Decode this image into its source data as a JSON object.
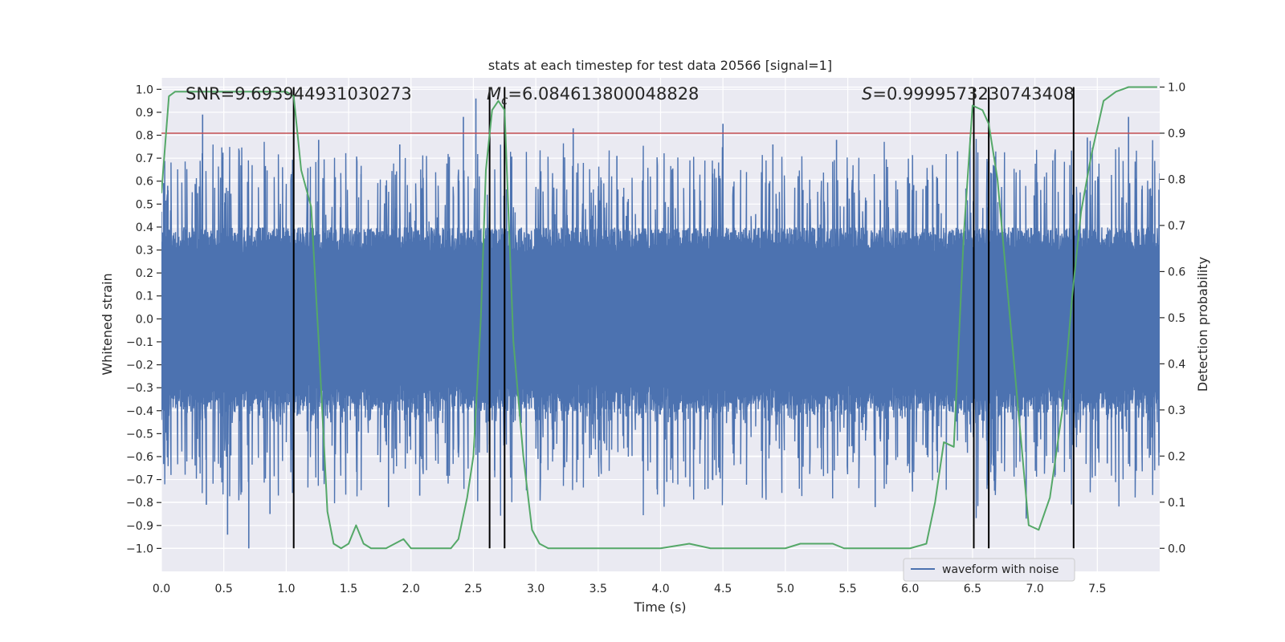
{
  "chart_data": {
    "type": "line",
    "title": "stats at each timestep for test data 20566 [signal=1]",
    "xlabel": "Time (s)",
    "ylabel_left": "Whitened strain",
    "ylabel_right": "Detection probability",
    "xlim": [
      0.0,
      8.0
    ],
    "ylim_left": [
      -1.1,
      1.05
    ],
    "ylim_right": [
      -0.05,
      1.02
    ],
    "x_ticks": [
      0.0,
      0.5,
      1.0,
      1.5,
      2.0,
      2.5,
      3.0,
      3.5,
      4.0,
      4.5,
      5.0,
      5.5,
      6.0,
      6.5,
      7.0,
      7.5
    ],
    "x_tick_labels": [
      "0.0",
      "0.5",
      "1.0",
      "1.5",
      "2.0",
      "2.5",
      "3.0",
      "3.5",
      "4.0",
      "4.5",
      "5.0",
      "5.5",
      "6.0",
      "6.5",
      "7.0",
      "7.5"
    ],
    "y_left_ticks": [
      1.0,
      0.9,
      0.8,
      0.7,
      0.6,
      0.5,
      0.4,
      0.3,
      0.2,
      0.1,
      0.0,
      -0.1,
      -0.2,
      -0.3,
      -0.4,
      -0.5,
      -0.6,
      -0.7,
      -0.8,
      -0.9,
      -1.0
    ],
    "y_left_tick_labels": [
      "1.0",
      "0.9",
      "0.8",
      "0.7",
      "0.6",
      "0.5",
      "0.4",
      "0.3",
      "0.2",
      "0.1",
      "0.0",
      "−0.1",
      "−0.2",
      "−0.3",
      "−0.4",
      "−0.5",
      "−0.6",
      "−0.7",
      "−0.8",
      "−0.9",
      "−1.0"
    ],
    "y_right_ticks": [
      1.0,
      0.9,
      0.8,
      0.7,
      0.6,
      0.5,
      0.4,
      0.3,
      0.2,
      0.1,
      0.0
    ],
    "y_right_tick_labels": [
      "1.0",
      "0.9",
      "0.8",
      "0.7",
      "0.6",
      "0.5",
      "0.4",
      "0.3",
      "0.2",
      "0.1",
      "0.0"
    ],
    "annotations": {
      "snr": "SNR=9.693944931030273",
      "mc_symbol": "M",
      "mc_sub": "c",
      "mc_value": "=6.084613800048828",
      "s_symbol": "S",
      "s_value": "=0.9999573230743408"
    },
    "threshold_right": 0.9,
    "vertical_lines_x": [
      1.06,
      2.63,
      2.75,
      6.51,
      6.63,
      7.31
    ],
    "vertical_lines_range_right": [
      0.0,
      1.0
    ],
    "waveform": {
      "name": "waveform with noise",
      "color": "#4c72b0",
      "n_samples": 2400,
      "base_amplitude": 0.38,
      "peaks": [
        {
          "x": 0.05,
          "y": 0.58
        },
        {
          "x": 0.33,
          "y": 0.89
        },
        {
          "x": 0.36,
          "y": -0.81
        },
        {
          "x": 0.53,
          "y": -0.94
        },
        {
          "x": 0.7,
          "y": -1.0
        },
        {
          "x": 0.87,
          "y": -0.85
        },
        {
          "x": 1.05,
          "y": 0.64
        },
        {
          "x": 1.26,
          "y": 0.78
        },
        {
          "x": 1.6,
          "y": 0.63
        },
        {
          "x": 1.82,
          "y": -0.82
        },
        {
          "x": 1.91,
          "y": 0.76
        },
        {
          "x": 2.07,
          "y": -0.77
        },
        {
          "x": 2.42,
          "y": 0.88
        },
        {
          "x": 2.52,
          "y": 0.96
        },
        {
          "x": 2.67,
          "y": -0.66
        },
        {
          "x": 3.3,
          "y": 0.83
        },
        {
          "x": 3.65,
          "y": 0.71
        },
        {
          "x": 4.05,
          "y": -0.71
        },
        {
          "x": 4.2,
          "y": -0.69
        },
        {
          "x": 4.38,
          "y": -0.74
        },
        {
          "x": 4.5,
          "y": 0.85
        },
        {
          "x": 4.9,
          "y": 0.76
        },
        {
          "x": 5.41,
          "y": 0.78
        },
        {
          "x": 5.72,
          "y": -0.82
        },
        {
          "x": 6.38,
          "y": 0.73
        },
        {
          "x": 6.48,
          "y": 0.79
        },
        {
          "x": 6.93,
          "y": -0.87
        },
        {
          "x": 7.42,
          "y": 0.79
        },
        {
          "x": 7.58,
          "y": -0.63
        },
        {
          "x": 7.75,
          "y": 0.88
        }
      ]
    },
    "probability": {
      "name": "detection probability",
      "color": "#55a868",
      "x": [
        0.0,
        0.06,
        0.11,
        0.2,
        0.3,
        0.4,
        0.5,
        0.6,
        0.7,
        0.8,
        0.9,
        1.0,
        1.06,
        1.12,
        1.2,
        1.26,
        1.3,
        1.33,
        1.38,
        1.44,
        1.5,
        1.56,
        1.62,
        1.68,
        1.74,
        1.8,
        1.87,
        1.94,
        2.0,
        2.1,
        2.2,
        2.32,
        2.38,
        2.45,
        2.5,
        2.56,
        2.6,
        2.65,
        2.7,
        2.75,
        2.82,
        2.9,
        2.97,
        3.03,
        3.1,
        3.3,
        3.6,
        4.0,
        4.23,
        4.4,
        4.7,
        5.0,
        5.12,
        5.22,
        5.3,
        5.38,
        5.47,
        5.6,
        5.8,
        6.0,
        6.13,
        6.2,
        6.27,
        6.35,
        6.43,
        6.5,
        6.58,
        6.63,
        6.7,
        6.8,
        6.88,
        6.95,
        7.03,
        7.12,
        7.22,
        7.3,
        7.37,
        7.45,
        7.55,
        7.65,
        7.75,
        7.85,
        7.98
      ],
      "y": [
        0.77,
        0.98,
        0.99,
        0.99,
        0.99,
        0.99,
        0.99,
        0.99,
        0.99,
        0.99,
        0.99,
        0.99,
        0.98,
        0.82,
        0.74,
        0.45,
        0.24,
        0.08,
        0.01,
        0.0,
        0.01,
        0.05,
        0.01,
        0.0,
        0.0,
        0.0,
        0.01,
        0.02,
        0.0,
        0.0,
        0.0,
        0.0,
        0.02,
        0.11,
        0.2,
        0.5,
        0.82,
        0.95,
        0.97,
        0.95,
        0.45,
        0.2,
        0.04,
        0.01,
        0.0,
        0.0,
        0.0,
        0.0,
        0.01,
        0.0,
        0.0,
        0.0,
        0.01,
        0.01,
        0.01,
        0.01,
        0.0,
        0.0,
        0.0,
        0.0,
        0.01,
        0.1,
        0.23,
        0.22,
        0.68,
        0.96,
        0.95,
        0.92,
        0.8,
        0.5,
        0.26,
        0.05,
        0.04,
        0.11,
        0.3,
        0.55,
        0.73,
        0.85,
        0.97,
        0.99,
        1.0,
        1.0,
        1.0
      ]
    },
    "threshold_color": "#c44e52",
    "vline_color": "#000000",
    "background_color": "#eaeaf2",
    "grid": true,
    "legend": {
      "position": "lower-right",
      "entries": [
        "waveform with noise"
      ]
    }
  }
}
